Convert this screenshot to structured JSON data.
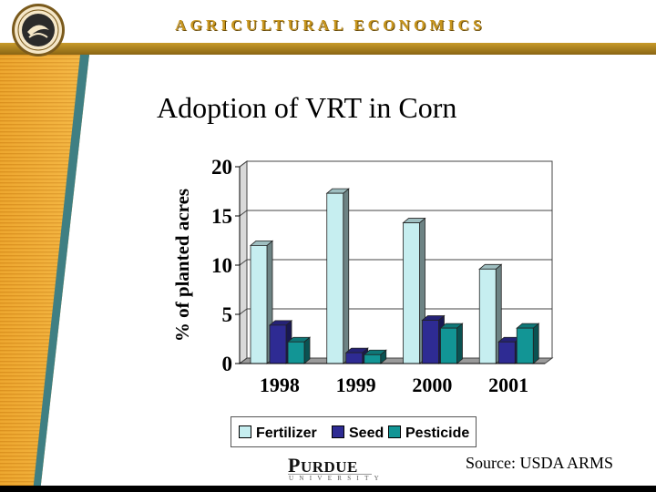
{
  "header": {
    "banner_text": "AGRICULTURAL ECONOMICS",
    "seal_text": "AGRICULTURAL",
    "accent_color": "#c8961e"
  },
  "slide": {
    "title": "Adoption of VRT in Corn",
    "source": "Source:  USDA ARMS",
    "logo_word_big": "P",
    "logo_word_rest": "URDUE",
    "logo_sub": "UNIVERSITY"
  },
  "chart_data": {
    "type": "bar",
    "categories": [
      "1998",
      "1999",
      "2000",
      "2001"
    ],
    "series": [
      {
        "name": "Fertilizer",
        "values": [
          12,
          17.3,
          14.3,
          9.6
        ],
        "color": "#c6eef0"
      },
      {
        "name": "Seed",
        "values": [
          3.9,
          1.1,
          4.4,
          2.2
        ],
        "color": "#2e2b93"
      },
      {
        "name": "Pesticide",
        "values": [
          2.2,
          0.9,
          3.6,
          3.6
        ],
        "color": "#129595"
      }
    ],
    "ylabel": "% of planted acres",
    "xlabel": "",
    "ylim": [
      0,
      20
    ],
    "yticks": [
      "0",
      "5",
      "10",
      "15",
      "20"
    ],
    "grid": true,
    "legend_position": "bottom"
  }
}
